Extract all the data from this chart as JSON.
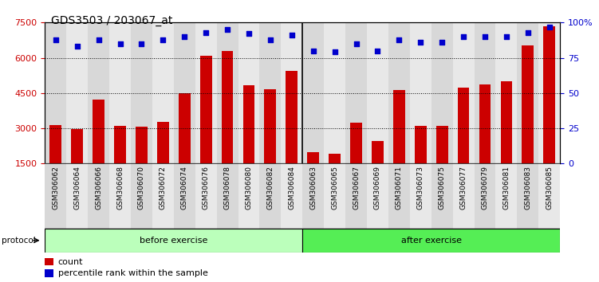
{
  "title": "GDS3503 / 203067_at",
  "categories": [
    "GSM306062",
    "GSM306064",
    "GSM306066",
    "GSM306068",
    "GSM306070",
    "GSM306072",
    "GSM306074",
    "GSM306076",
    "GSM306078",
    "GSM306080",
    "GSM306082",
    "GSM306084",
    "GSM306063",
    "GSM306065",
    "GSM306067",
    "GSM306069",
    "GSM306071",
    "GSM306073",
    "GSM306075",
    "GSM306077",
    "GSM306079",
    "GSM306081",
    "GSM306083",
    "GSM306085"
  ],
  "counts": [
    3130,
    2960,
    4230,
    3090,
    3060,
    3280,
    4500,
    6100,
    6300,
    4820,
    4680,
    5430,
    1980,
    1920,
    3250,
    2450,
    4620,
    3110,
    3110,
    4720,
    4870,
    5010,
    6540,
    7350
  ],
  "percentile_ranks": [
    88,
    83,
    88,
    85,
    85,
    88,
    90,
    93,
    95,
    92,
    88,
    91,
    80,
    79,
    85,
    80,
    88,
    86,
    86,
    90,
    90,
    90,
    93,
    97
  ],
  "before_exercise_count": 12,
  "after_exercise_count": 12,
  "ylim_left": [
    1500,
    7500
  ],
  "ylim_right": [
    0,
    100
  ],
  "yticks_left": [
    1500,
    3000,
    4500,
    6000,
    7500
  ],
  "yticks_right": [
    0,
    25,
    50,
    75,
    100
  ],
  "ytick_labels_right": [
    "0",
    "25",
    "50",
    "75",
    "100%"
  ],
  "bar_color": "#cc0000",
  "dot_color": "#0000cc",
  "before_color": "#bbffbb",
  "after_color": "#55ee55",
  "col_bg_even": "#d8d8d8",
  "col_bg_odd": "#e8e8e8",
  "grid_color": "#000000",
  "protocol_label": "protocol",
  "before_label": "before exercise",
  "after_label": "after exercise",
  "legend_count": "count",
  "legend_percentile": "percentile rank within the sample",
  "background_color": "#ffffff",
  "plot_bg_color": "#ffffff",
  "title_fontsize": 10,
  "tick_label_fontsize": 6.5,
  "axis_label_fontsize": 9
}
